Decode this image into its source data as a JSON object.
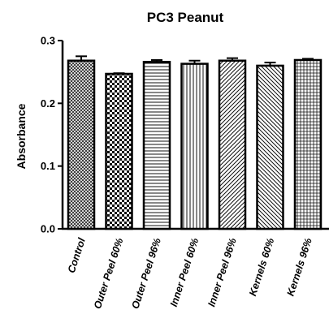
{
  "chart_data": {
    "type": "bar",
    "title": "PC3 Peanut",
    "xlabel": "",
    "ylabel": "Absorbance",
    "ylim": [
      0,
      0.3
    ],
    "yticks": [
      "0.0",
      "0.1",
      "0.2",
      "0.3"
    ],
    "categories": [
      "Control",
      "Outer Peel 60%",
      "Outer Peel 96%",
      "Inner Peel 60%",
      "Inner Peel 96%",
      "Kernels 60%",
      "Kernels 96%"
    ],
    "values": [
      0.268,
      0.247,
      0.266,
      0.263,
      0.268,
      0.26,
      0.269
    ],
    "errors": [
      0.007,
      0.001,
      0.003,
      0.005,
      0.004,
      0.005,
      0.002
    ],
    "patterns": [
      "crosshatch",
      "checker",
      "horizontal-lines",
      "vertical-lines",
      "diagonal-lines",
      "diagonal-lines-reverse",
      "grid"
    ],
    "grid": false,
    "legend": "none"
  }
}
